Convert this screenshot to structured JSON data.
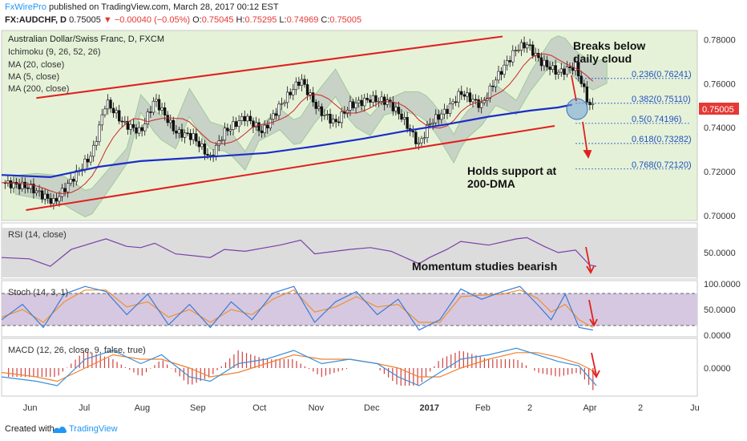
{
  "header": {
    "brand": "FxWirePro",
    "published": " published on TradingView.com, March 28, 2017 00:12 EST",
    "symbol": "FX:AUDCHF, D",
    "last": "0.75005",
    "change": "▼ −0.00040 (−0.05%)",
    "o_label": "O:",
    "o_val": "0.75045",
    "h_label": "H:",
    "h_val": "0.75295",
    "l_label": "L:",
    "l_val": "0.74969",
    "c_label": "C:",
    "c_val": "0.75005"
  },
  "footer": {
    "created": "Created with",
    "brand": "TradingView"
  },
  "colors": {
    "price_bg": "#e6f2d8",
    "indicator_bg": "#dcdcdc",
    "stoch_bg": "#d6c8e0",
    "channel": "#e02020",
    "ma200": "#1a2ec8",
    "rsi": "#7b3fa8",
    "stoch_k": "#3a7bd5",
    "stoch_d": "#f09030",
    "macd": "#3a90d8",
    "signal": "#f08030",
    "hist": "#d04040",
    "fib": "#2050c0",
    "cloud_green": "#9ccc9c",
    "cloud_gray": "#b0b8b8",
    "current_price": "#e53935"
  },
  "panes": {
    "price_legend": [
      "Australian Dollar/Swiss Franc, D, FXCM",
      "Ichimoku (9, 26, 52, 26)",
      "MA (20, close)",
      "MA (5, close)",
      "MA (200, close)"
    ],
    "rsi_legend": "RSI (14, close)",
    "stoch_legend": "Stoch (14, 3, 1)",
    "macd_legend": "MACD (12, 26, close, 9, false, true)"
  },
  "annotations": {
    "breaks_line1": "Breaks below",
    "breaks_line2": "daily cloud",
    "holds_line1": "Holds support at",
    "holds_line2": "200-DMA",
    "momentum": "Momentum studies bearish"
  },
  "chart_data": {
    "type": "candlestick",
    "x_ticks": [
      "Jun",
      "Jul",
      "Aug",
      "Sep",
      "Oct",
      "Nov",
      "Dec",
      "2017",
      "Feb",
      "2",
      "Apr",
      "2",
      "Ju"
    ],
    "price_axis": {
      "ticks": [
        "0.78000",
        "0.76000",
        "0.74000",
        "0.72000",
        "0.70000"
      ],
      "ylim": [
        0.6985,
        0.7835
      ]
    },
    "current_price": "0.75005",
    "fibonacci": [
      {
        "label": "0.236(0.76241)",
        "value": 0.76241
      },
      {
        "label": "0.382(0.75110)",
        "value": 0.7511
      },
      {
        "label": "0.5(0.74196)",
        "value": 0.74196
      },
      {
        "label": "0.618(0.73282)",
        "value": 0.73282
      },
      {
        "label": "0.768(0.72120)",
        "value": 0.7212
      }
    ],
    "channel_upper": [
      [
        0.05,
        0.7535
      ],
      [
        0.72,
        0.7815
      ]
    ],
    "channel_lower": [
      [
        0.035,
        0.7025
      ],
      [
        0.795,
        0.7408
      ]
    ],
    "ma200": [
      [
        0.0,
        0.7185
      ],
      [
        0.07,
        0.7175
      ],
      [
        0.14,
        0.7222
      ],
      [
        0.2,
        0.7248
      ],
      [
        0.27,
        0.7262
      ],
      [
        0.32,
        0.7272
      ],
      [
        0.38,
        0.7285
      ],
      [
        0.45,
        0.7315
      ],
      [
        0.52,
        0.735
      ],
      [
        0.58,
        0.7385
      ],
      [
        0.64,
        0.7415
      ],
      [
        0.7,
        0.745
      ],
      [
        0.76,
        0.7478
      ],
      [
        0.8,
        0.7492
      ],
      [
        0.82,
        0.7505
      ]
    ],
    "close": [
      [
        0.0,
        0.715
      ],
      [
        0.04,
        0.713
      ],
      [
        0.075,
        0.706
      ],
      [
        0.1,
        0.716
      ],
      [
        0.13,
        0.728
      ],
      [
        0.15,
        0.752
      ],
      [
        0.175,
        0.742
      ],
      [
        0.2,
        0.738
      ],
      [
        0.22,
        0.753
      ],
      [
        0.25,
        0.738
      ],
      [
        0.275,
        0.736
      ],
      [
        0.3,
        0.726
      ],
      [
        0.32,
        0.738
      ],
      [
        0.35,
        0.745
      ],
      [
        0.375,
        0.738
      ],
      [
        0.4,
        0.75
      ],
      [
        0.43,
        0.762
      ],
      [
        0.455,
        0.748
      ],
      [
        0.48,
        0.742
      ],
      [
        0.5,
        0.75
      ],
      [
        0.53,
        0.753
      ],
      [
        0.555,
        0.752
      ],
      [
        0.575,
        0.745
      ],
      [
        0.6,
        0.732
      ],
      [
        0.615,
        0.742
      ],
      [
        0.64,
        0.748
      ],
      [
        0.66,
        0.756
      ],
      [
        0.69,
        0.75
      ],
      [
        0.71,
        0.762
      ],
      [
        0.74,
        0.776
      ],
      [
        0.755,
        0.778
      ],
      [
        0.775,
        0.77
      ],
      [
        0.8,
        0.765
      ],
      [
        0.825,
        0.768
      ],
      [
        0.845,
        0.75
      ],
      [
        0.855,
        0.75
      ]
    ],
    "rsi": {
      "ticks": [
        "50.0000"
      ],
      "ylim": [
        10,
        90
      ],
      "values": [
        [
          0.0,
          42
        ],
        [
          0.04,
          40
        ],
        [
          0.07,
          28
        ],
        [
          0.1,
          55
        ],
        [
          0.15,
          72
        ],
        [
          0.18,
          60
        ],
        [
          0.2,
          58
        ],
        [
          0.22,
          65
        ],
        [
          0.25,
          48
        ],
        [
          0.3,
          42
        ],
        [
          0.32,
          55
        ],
        [
          0.35,
          52
        ],
        [
          0.4,
          62
        ],
        [
          0.43,
          70
        ],
        [
          0.45,
          48
        ],
        [
          0.5,
          55
        ],
        [
          0.53,
          58
        ],
        [
          0.56,
          52
        ],
        [
          0.6,
          32
        ],
        [
          0.615,
          42
        ],
        [
          0.64,
          55
        ],
        [
          0.66,
          68
        ],
        [
          0.7,
          62
        ],
        [
          0.74,
          72
        ],
        [
          0.755,
          74
        ],
        [
          0.78,
          60
        ],
        [
          0.8,
          50
        ],
        [
          0.825,
          54
        ],
        [
          0.845,
          30
        ],
        [
          0.855,
          28
        ]
      ]
    },
    "stoch": {
      "ticks": [
        "100.0000",
        "50.0000",
        "0.0000"
      ],
      "ylim": [
        0,
        100
      ],
      "bands": [
        80,
        20
      ],
      "k": [
        [
          0.0,
          30
        ],
        [
          0.03,
          60
        ],
        [
          0.06,
          15
        ],
        [
          0.09,
          80
        ],
        [
          0.12,
          95
        ],
        [
          0.15,
          85
        ],
        [
          0.18,
          40
        ],
        [
          0.21,
          80
        ],
        [
          0.24,
          20
        ],
        [
          0.27,
          60
        ],
        [
          0.3,
          15
        ],
        [
          0.33,
          65
        ],
        [
          0.36,
          30
        ],
        [
          0.39,
          82
        ],
        [
          0.42,
          95
        ],
        [
          0.45,
          25
        ],
        [
          0.48,
          65
        ],
        [
          0.51,
          85
        ],
        [
          0.54,
          40
        ],
        [
          0.57,
          70
        ],
        [
          0.6,
          10
        ],
        [
          0.63,
          30
        ],
        [
          0.66,
          90
        ],
        [
          0.69,
          70
        ],
        [
          0.72,
          85
        ],
        [
          0.745,
          95
        ],
        [
          0.77,
          60
        ],
        [
          0.79,
          30
        ],
        [
          0.81,
          80
        ],
        [
          0.83,
          15
        ],
        [
          0.85,
          10
        ]
      ],
      "d": [
        [
          0.0,
          35
        ],
        [
          0.03,
          50
        ],
        [
          0.06,
          25
        ],
        [
          0.09,
          65
        ],
        [
          0.12,
          88
        ],
        [
          0.15,
          88
        ],
        [
          0.18,
          55
        ],
        [
          0.21,
          65
        ],
        [
          0.24,
          35
        ],
        [
          0.27,
          50
        ],
        [
          0.3,
          25
        ],
        [
          0.33,
          50
        ],
        [
          0.36,
          40
        ],
        [
          0.39,
          70
        ],
        [
          0.42,
          88
        ],
        [
          0.45,
          45
        ],
        [
          0.48,
          55
        ],
        [
          0.51,
          75
        ],
        [
          0.54,
          55
        ],
        [
          0.57,
          60
        ],
        [
          0.6,
          25
        ],
        [
          0.63,
          25
        ],
        [
          0.66,
          75
        ],
        [
          0.69,
          78
        ],
        [
          0.72,
          80
        ],
        [
          0.745,
          88
        ],
        [
          0.77,
          72
        ],
        [
          0.79,
          45
        ],
        [
          0.81,
          60
        ],
        [
          0.83,
          30
        ],
        [
          0.85,
          15
        ]
      ]
    },
    "macd": {
      "ticks": [
        "0.0000"
      ],
      "ylim": [
        -0.006,
        0.006
      ],
      "macd": [
        [
          0.0,
          -0.002
        ],
        [
          0.05,
          -0.003
        ],
        [
          0.08,
          -0.004
        ],
        [
          0.12,
          0.002
        ],
        [
          0.16,
          0.004
        ],
        [
          0.2,
          0.001
        ],
        [
          0.23,
          0.003
        ],
        [
          0.27,
          -0.002
        ],
        [
          0.3,
          -0.003
        ],
        [
          0.34,
          0.001
        ],
        [
          0.38,
          0.002
        ],
        [
          0.42,
          0.004
        ],
        [
          0.46,
          0.001
        ],
        [
          0.5,
          0.002
        ],
        [
          0.54,
          0.001
        ],
        [
          0.57,
          -0.002
        ],
        [
          0.6,
          -0.004
        ],
        [
          0.63,
          -0.001
        ],
        [
          0.66,
          0.002
        ],
        [
          0.7,
          0.003
        ],
        [
          0.74,
          0.0045
        ],
        [
          0.77,
          0.003
        ],
        [
          0.8,
          0.0015
        ],
        [
          0.83,
          0.0005
        ],
        [
          0.855,
          -0.004
        ]
      ],
      "signal": [
        [
          0.0,
          -0.001
        ],
        [
          0.05,
          -0.002
        ],
        [
          0.08,
          -0.003
        ],
        [
          0.12,
          0.0
        ],
        [
          0.16,
          0.003
        ],
        [
          0.2,
          0.002
        ],
        [
          0.23,
          0.002
        ],
        [
          0.27,
          0.0
        ],
        [
          0.3,
          -0.002
        ],
        [
          0.34,
          -0.001
        ],
        [
          0.38,
          0.001
        ],
        [
          0.42,
          0.003
        ],
        [
          0.46,
          0.002
        ],
        [
          0.5,
          0.002
        ],
        [
          0.54,
          0.001
        ],
        [
          0.57,
          0.0
        ],
        [
          0.6,
          -0.002
        ],
        [
          0.63,
          -0.002
        ],
        [
          0.66,
          0.0
        ],
        [
          0.7,
          0.002
        ],
        [
          0.74,
          0.0035
        ],
        [
          0.77,
          0.0035
        ],
        [
          0.8,
          0.0025
        ],
        [
          0.83,
          0.001
        ],
        [
          0.855,
          -0.001
        ]
      ]
    }
  }
}
